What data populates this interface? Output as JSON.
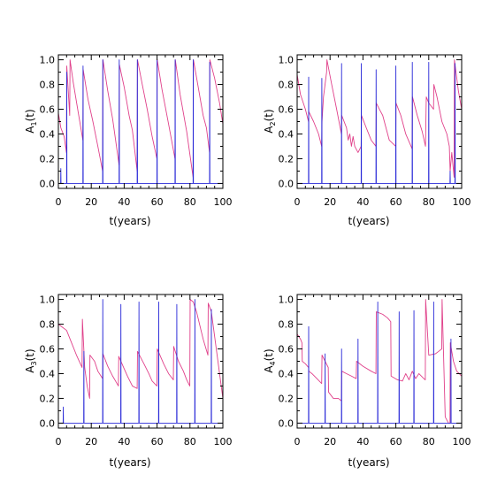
{
  "chart_data": [
    {
      "type": "line",
      "panel": "top-left",
      "ylabel": {
        "base": "A",
        "sub": "1",
        "arg": "(t)"
      },
      "xlabel": "t(years)",
      "xlim": [
        0,
        100
      ],
      "ylim": [
        -0.04,
        1.04
      ],
      "xticks": [
        0,
        20,
        40,
        60,
        80,
        100
      ],
      "yticks": [
        0.0,
        0.2,
        0.4,
        0.6,
        0.8,
        1.0
      ],
      "ytick_labels": [
        "0.0",
        "0.2",
        "0.4",
        "0.6",
        "0.8",
        "1.0"
      ],
      "grid": false,
      "series": [
        {
          "color": "#e0408a",
          "x": [
            0,
            1.5,
            3.5,
            4.9,
            5.1,
            6.9,
            7.1,
            9,
            12,
            14.9,
            15.1,
            18,
            21,
            24,
            26.9,
            27.1,
            30,
            33,
            36.9,
            37.1,
            40,
            43,
            45,
            47.9,
            48.1,
            51,
            54,
            57,
            59.9,
            60.1,
            63,
            67,
            70.9,
            71.1,
            74,
            78,
            81.9,
            82.1,
            85,
            88,
            90,
            91.9,
            92.1,
            95,
            98,
            100
          ],
          "y": [
            0.57,
            0.45,
            0.38,
            0.25,
            0.95,
            0.55,
            1.0,
            0.82,
            0.58,
            0.35,
            0.92,
            0.68,
            0.5,
            0.3,
            0.1,
            1.0,
            0.75,
            0.52,
            0.15,
            0.96,
            0.78,
            0.55,
            0.43,
            0.1,
            1.0,
            0.8,
            0.6,
            0.38,
            0.2,
            1.0,
            0.76,
            0.48,
            0.2,
            1.0,
            0.72,
            0.42,
            0.05,
            1.0,
            0.78,
            0.55,
            0.45,
            0.25,
            1.0,
            0.85,
            0.65,
            0.48
          ]
        },
        {
          "color": "#2a2ad8",
          "x": [
            0,
            1.4,
            1.5,
            1.6,
            3,
            5.0,
            5.1,
            5.2,
            9,
            14.9,
            15.0,
            15.1,
            18,
            22,
            26.9,
            27.0,
            27.1,
            31,
            36.9,
            37.0,
            37.1,
            42,
            47.9,
            48.0,
            48.1,
            53,
            59.9,
            60.0,
            60.1,
            65,
            70.9,
            71.0,
            71.1,
            76,
            81.9,
            82.0,
            82.1,
            87,
            91.9,
            92.0,
            92.1,
            96,
            100
          ],
          "y": [
            0.0,
            0.0,
            0.12,
            0.0,
            0.0,
            0.0,
            0.9,
            0.0,
            0.0,
            0.0,
            0.95,
            0.0,
            0.0,
            0.0,
            0.0,
            1.0,
            0.0,
            0.0,
            0.0,
            1.0,
            0.0,
            0.0,
            0.0,
            1.0,
            0.0,
            0.0,
            0.0,
            1.0,
            0.0,
            0.0,
            0.0,
            1.0,
            0.0,
            0.0,
            0.0,
            1.0,
            0.0,
            0.0,
            0.0,
            0.98,
            0.0,
            0.0,
            0.0
          ]
        }
      ]
    },
    {
      "type": "line",
      "panel": "top-right",
      "ylabel": {
        "base": "A",
        "sub": "2",
        "arg": "(t)"
      },
      "xlabel": "t(years)",
      "xlim": [
        0,
        100
      ],
      "ylim": [
        -0.04,
        1.04
      ],
      "xticks": [
        0,
        20,
        40,
        60,
        80,
        100
      ],
      "yticks": [
        0.0,
        0.2,
        0.4,
        0.6,
        0.8,
        1.0
      ],
      "ytick_labels": [
        "0.0",
        "0.2",
        "0.4",
        "0.6",
        "0.8",
        "1.0"
      ],
      "grid": false,
      "series": [
        {
          "color": "#e0408a",
          "x": [
            0,
            2,
            5,
            6.9,
            7.1,
            10,
            13,
            14.9,
            15.1,
            16,
            17.9,
            18.1,
            21,
            24,
            26.9,
            27.1,
            30,
            31,
            32,
            33,
            34,
            35,
            37,
            38.9,
            39.1,
            42,
            45,
            47.9,
            48.1,
            50,
            52,
            54,
            56,
            59.9,
            60.1,
            63,
            66,
            69.9,
            70.1,
            73,
            76,
            78,
            78.5,
            80,
            82.9,
            83.1,
            85,
            88,
            91,
            92.5,
            93,
            94,
            95.4,
            95.6,
            98,
            100
          ],
          "y": [
            0.88,
            0.72,
            0.6,
            0.5,
            0.58,
            0.5,
            0.4,
            0.3,
            0.5,
            0.7,
            0.9,
            1.0,
            0.8,
            0.6,
            0.4,
            0.55,
            0.45,
            0.35,
            0.4,
            0.3,
            0.38,
            0.3,
            0.25,
            0.3,
            0.55,
            0.45,
            0.35,
            0.3,
            0.65,
            0.6,
            0.55,
            0.45,
            0.35,
            0.3,
            0.65,
            0.55,
            0.4,
            0.28,
            0.7,
            0.55,
            0.42,
            0.3,
            0.7,
            0.65,
            0.6,
            0.8,
            0.7,
            0.5,
            0.4,
            0.3,
            0.1,
            0.25,
            0.05,
            1.0,
            0.75,
            0.6
          ]
        },
        {
          "color": "#2a2ad8",
          "x": [
            0,
            2,
            6.9,
            7.0,
            7.1,
            11,
            14.9,
            15.0,
            15.1,
            21,
            26.9,
            27.0,
            27.1,
            32,
            38.9,
            39.0,
            39.1,
            44,
            47.9,
            48.0,
            48.1,
            54,
            59.9,
            60.0,
            60.1,
            65,
            69.9,
            70.0,
            70.1,
            75,
            79.9,
            80.0,
            80.1,
            84,
            92.9,
            93.0,
            93.1,
            95.9,
            96.0,
            96.1,
            100
          ],
          "y": [
            0.0,
            0.0,
            0.0,
            0.86,
            0.0,
            0.0,
            0.0,
            0.85,
            0.0,
            0.0,
            0.0,
            0.97,
            0.0,
            0.0,
            0.0,
            0.97,
            0.0,
            0.0,
            0.0,
            0.92,
            0.0,
            0.0,
            0.0,
            0.95,
            0.0,
            0.0,
            0.0,
            0.98,
            0.0,
            0.0,
            0.0,
            0.98,
            0.0,
            0.0,
            0.0,
            0.1,
            0.0,
            0.0,
            0.97,
            0.0,
            0.0
          ]
        }
      ]
    },
    {
      "type": "line",
      "panel": "bottom-left",
      "ylabel": {
        "base": "A",
        "sub": "3",
        "arg": "(t)"
      },
      "xlabel": "t(years)",
      "xlim": [
        0,
        100
      ],
      "ylim": [
        -0.04,
        1.04
      ],
      "xticks": [
        0,
        20,
        40,
        60,
        80,
        100
      ],
      "yticks": [
        0.0,
        0.2,
        0.4,
        0.6,
        0.8,
        1.0
      ],
      "ytick_labels": [
        "0.0",
        "0.2",
        "0.4",
        "0.6",
        "0.8",
        "1.0"
      ],
      "grid": false,
      "series": [
        {
          "color": "#e0408a",
          "x": [
            0,
            2,
            5,
            8,
            11,
            14.4,
            14.6,
            16,
            17.5,
            19,
            19.2,
            22,
            24,
            26.9,
            27.1,
            30,
            33,
            36.5,
            36.7,
            40,
            42,
            45,
            47.9,
            48.1,
            52,
            55,
            57,
            59.9,
            60.1,
            64,
            67,
            69.9,
            70.1,
            73,
            76,
            78,
            79.9,
            80.1,
            82,
            84,
            88,
            90.9,
            91.1,
            93,
            96,
            100
          ],
          "y": [
            0.8,
            0.78,
            0.75,
            0.65,
            0.55,
            0.45,
            0.84,
            0.45,
            0.3,
            0.2,
            0.55,
            0.5,
            0.42,
            0.36,
            0.56,
            0.46,
            0.38,
            0.3,
            0.54,
            0.44,
            0.38,
            0.3,
            0.28,
            0.58,
            0.48,
            0.4,
            0.34,
            0.3,
            0.6,
            0.48,
            0.4,
            0.35,
            0.62,
            0.5,
            0.42,
            0.35,
            0.3,
            1.0,
            0.98,
            0.9,
            0.68,
            0.55,
            0.97,
            0.9,
            0.6,
            0.2
          ]
        },
        {
          "color": "#2a2ad8",
          "x": [
            0,
            2.9,
            3.0,
            3.1,
            9,
            15.4,
            15.5,
            15.6,
            21,
            26.9,
            27.0,
            27.1,
            32,
            37.9,
            38.0,
            38.1,
            43,
            48.9,
            49.0,
            49.1,
            55,
            60.9,
            61.0,
            61.1,
            66,
            71.9,
            72.0,
            72.1,
            77,
            82.9,
            83.0,
            83.1,
            88,
            92.9,
            93.0,
            93.1,
            100
          ],
          "y": [
            0.0,
            0.0,
            0.13,
            0.0,
            0.0,
            0.0,
            0.58,
            0.0,
            0.0,
            0.0,
            1.0,
            0.0,
            0.0,
            0.0,
            0.96,
            0.0,
            0.0,
            0.0,
            0.98,
            0.0,
            0.0,
            0.0,
            0.98,
            0.0,
            0.0,
            0.0,
            0.96,
            0.0,
            0.0,
            0.0,
            1.0,
            0.0,
            0.0,
            0.0,
            0.92,
            0.0,
            0.0
          ]
        }
      ]
    },
    {
      "type": "line",
      "panel": "bottom-right",
      "ylabel": {
        "base": "A",
        "sub": "4",
        "arg": "(t)"
      },
      "xlabel": "t(years)",
      "xlim": [
        0,
        100
      ],
      "ylim": [
        -0.04,
        1.04
      ],
      "xticks": [
        0,
        20,
        40,
        60,
        80,
        100
      ],
      "yticks": [
        0.0,
        0.2,
        0.4,
        0.6,
        0.8,
        1.0
      ],
      "ytick_labels": [
        "0.0",
        "0.2",
        "0.4",
        "0.6",
        "0.8",
        "1.0"
      ],
      "grid": false,
      "series": [
        {
          "color": "#e0408a",
          "x": [
            0,
            2,
            2.9,
            3.1,
            5,
            6.9,
            7.1,
            9,
            12,
            14.9,
            15.1,
            17,
            18.9,
            19.1,
            22,
            25,
            26.9,
            27.1,
            30,
            33,
            35.9,
            36.1,
            40,
            45,
            47.9,
            48.1,
            52,
            55,
            56.9,
            57.1,
            61,
            64,
            66,
            68,
            70,
            72,
            74,
            77,
            77.9,
            78.1,
            80,
            84,
            86,
            87.9,
            88.1,
            90,
            92,
            92.9,
            93.1,
            95,
            97,
            100
          ],
          "y": [
            0.72,
            0.68,
            0.65,
            0.5,
            0.48,
            0.45,
            0.42,
            0.4,
            0.36,
            0.32,
            0.55,
            0.5,
            0.45,
            0.25,
            0.2,
            0.2,
            0.18,
            0.42,
            0.4,
            0.38,
            0.36,
            0.5,
            0.46,
            0.42,
            0.4,
            0.9,
            0.88,
            0.85,
            0.82,
            0.38,
            0.35,
            0.34,
            0.4,
            0.35,
            0.42,
            0.36,
            0.4,
            0.36,
            0.35,
            1.0,
            0.55,
            0.56,
            0.58,
            0.6,
            1.0,
            0.05,
            0.0,
            0.0,
            0.65,
            0.5,
            0.42,
            0.38
          ]
        },
        {
          "color": "#2a2ad8",
          "x": [
            0,
            2,
            6.9,
            7.0,
            7.1,
            10,
            16.9,
            17.0,
            17.1,
            22,
            26.9,
            27.0,
            27.1,
            31,
            36.9,
            37.0,
            37.1,
            44,
            48.9,
            49.0,
            49.1,
            55,
            61.9,
            62.0,
            62.1,
            66,
            70.9,
            71.0,
            71.1,
            75,
            82.9,
            83.0,
            83.1,
            88,
            93.4,
            93.5,
            93.6,
            100
          ],
          "y": [
            0.0,
            0.0,
            0.0,
            0.78,
            0.0,
            0.0,
            0.0,
            0.56,
            0.0,
            0.0,
            0.0,
            0.6,
            0.0,
            0.0,
            0.0,
            0.68,
            0.0,
            0.0,
            0.0,
            0.98,
            0.0,
            0.0,
            0.0,
            0.9,
            0.0,
            0.0,
            0.0,
            0.91,
            0.0,
            0.0,
            0.0,
            0.98,
            0.0,
            0.0,
            0.0,
            0.68,
            0.0,
            0.0
          ]
        }
      ]
    }
  ]
}
